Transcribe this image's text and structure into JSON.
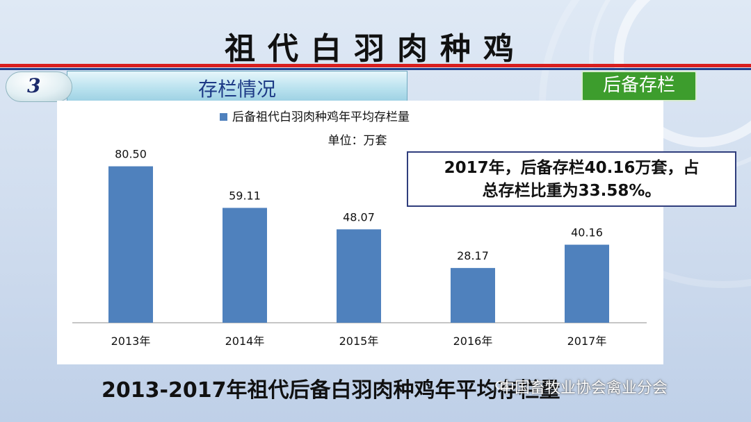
{
  "header": {
    "title": "祖代白羽肉种鸡",
    "section_number": "3",
    "section_label": "存栏情况",
    "tag": "后备存栏"
  },
  "callout": {
    "line1": "2017年，后备存栏40.16万套，占",
    "line2": "总存栏比重为33.58%。"
  },
  "caption": "2013-2017年祖代后备白羽肉种鸡年平均存栏量",
  "watermark": "中国畜牧业协会禽业分会",
  "colors": {
    "bar": "#4f81bd",
    "accent_red": "#d81e1e",
    "accent_navy": "#1f3f8c",
    "tag_green": "#3d9d2d"
  },
  "chart_data": {
    "type": "bar",
    "legend": "后备祖代白羽肉种鸡年平均存栏量",
    "unit_label": "单位：万套",
    "categories": [
      "2013年",
      "2014年",
      "2015年",
      "2016年",
      "2017年"
    ],
    "values": [
      80.5,
      59.11,
      48.07,
      28.17,
      40.16
    ],
    "value_labels": [
      "80.50",
      "59.11",
      "48.07",
      "28.17",
      "40.16"
    ],
    "ylim": [
      0,
      100
    ],
    "grid": false,
    "legend_position": "top"
  }
}
